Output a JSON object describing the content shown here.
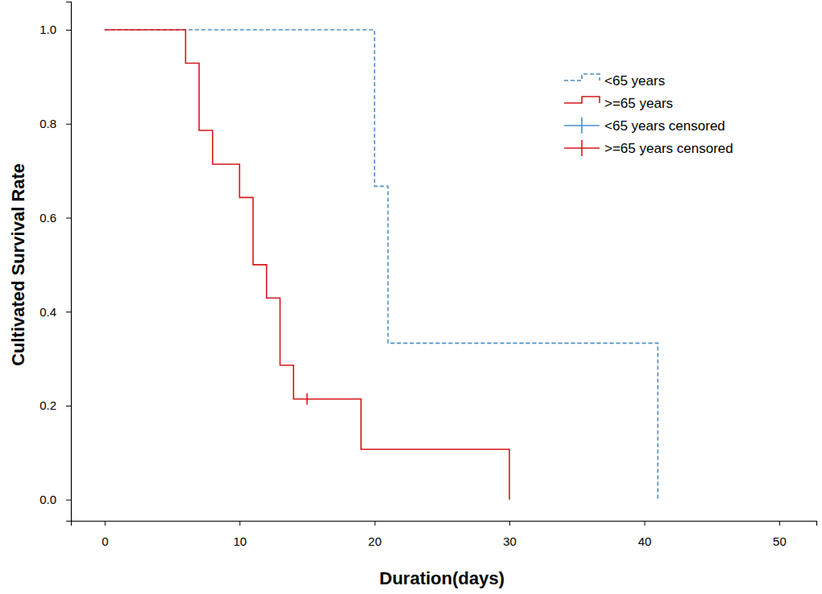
{
  "chart_data": {
    "type": "line",
    "x_label": "Duration(days)",
    "y_label": "Cultivated Survival Rate",
    "xlim": [
      -2.5,
      52.75
    ],
    "ylim": [
      -0.045,
      1.06
    ],
    "xticks": [
      0,
      10,
      20,
      30,
      40,
      50
    ],
    "yticks": [
      {
        "value": 0,
        "label": "0.0"
      },
      {
        "value": 0.2,
        "label": "0.2"
      },
      {
        "value": 0.4,
        "label": "0.4"
      },
      {
        "value": 0.6,
        "label": "0.6"
      },
      {
        "value": 0.8,
        "label": "0.8"
      },
      {
        "value": 1,
        "label": "1.0"
      }
    ],
    "legend": "top-right",
    "series": [
      {
        "name": "<65 years",
        "type": "step",
        "color": "#4a8fcb",
        "line_style": "dashed",
        "x": [
          0,
          20,
          21,
          41
        ],
        "values": [
          1,
          0.667,
          0.333,
          0
        ]
      },
      {
        "name": ">=65 years",
        "type": "step",
        "color": "#d7191c",
        "line_style": "solid",
        "x": [
          0,
          6,
          7,
          8,
          10,
          11,
          12,
          13,
          14,
          19,
          30
        ],
        "values": [
          1,
          0.929,
          0.786,
          0.714,
          0.643,
          0.5,
          0.429,
          0.286,
          0.214,
          0.107,
          0
        ]
      },
      {
        "name": "<65 years censored",
        "type": "scatter",
        "marker": "tick",
        "color": "#4a8fcb",
        "x": [],
        "values": []
      },
      {
        "name": ">=65 years censored",
        "type": "scatter",
        "marker": "tick",
        "color": "#d7191c",
        "x": [
          15
        ],
        "values": [
          0.214
        ]
      }
    ]
  }
}
